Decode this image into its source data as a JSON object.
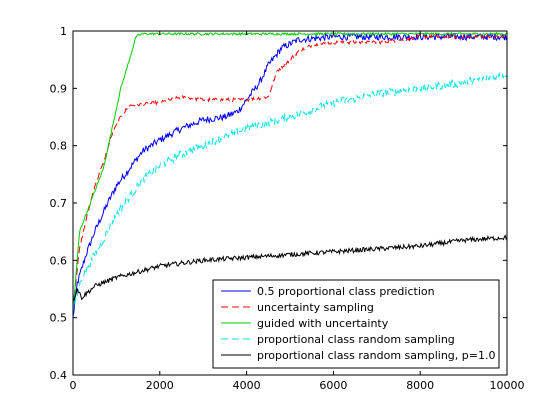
{
  "chart_data": {
    "type": "line",
    "title": "",
    "xlabel": "",
    "ylabel": "",
    "xlim": [
      0,
      10000
    ],
    "ylim": [
      0.4,
      1.0
    ],
    "x_ticks": [
      0,
      2000,
      4000,
      6000,
      8000,
      10000
    ],
    "x_tick_labels": [
      "0",
      "2000",
      "4000",
      "6000",
      "8000",
      "10000"
    ],
    "y_ticks": [
      0.4,
      0.5,
      0.6,
      0.7,
      0.8,
      0.9,
      1.0
    ],
    "y_tick_labels": [
      "0.4",
      "0.5",
      "0.6",
      "0.7",
      "0.8",
      "0.9",
      "1"
    ],
    "grid": false,
    "legend_position": "bottom-right",
    "series": [
      {
        "name": "0.5 proportional class prediction",
        "color": "#0000ff",
        "dash": "solid",
        "noise": 0.006,
        "points": [
          [
            0,
            0.5
          ],
          [
            100,
            0.56
          ],
          [
            300,
            0.61
          ],
          [
            500,
            0.65
          ],
          [
            800,
            0.7
          ],
          [
            1000,
            0.73
          ],
          [
            1300,
            0.76
          ],
          [
            1600,
            0.79
          ],
          [
            2000,
            0.81
          ],
          [
            2500,
            0.83
          ],
          [
            3000,
            0.845
          ],
          [
            3500,
            0.85
          ],
          [
            3800,
            0.86
          ],
          [
            4000,
            0.88
          ],
          [
            4300,
            0.91
          ],
          [
            4500,
            0.94
          ],
          [
            4800,
            0.97
          ],
          [
            5200,
            0.985
          ],
          [
            6000,
            0.99
          ],
          [
            8000,
            0.99
          ],
          [
            10000,
            0.99
          ]
        ]
      },
      {
        "name": "uncertainty sampling",
        "color": "#ff0000",
        "dash": "7,4",
        "noise": 0.003,
        "points": [
          [
            0,
            0.52
          ],
          [
            150,
            0.62
          ],
          [
            300,
            0.67
          ],
          [
            500,
            0.73
          ],
          [
            700,
            0.77
          ],
          [
            900,
            0.82
          ],
          [
            1100,
            0.85
          ],
          [
            1300,
            0.87
          ],
          [
            2000,
            0.875
          ],
          [
            2500,
            0.885
          ],
          [
            3000,
            0.88
          ],
          [
            4000,
            0.88
          ],
          [
            4500,
            0.885
          ],
          [
            4700,
            0.93
          ],
          [
            5000,
            0.95
          ],
          [
            5200,
            0.965
          ],
          [
            5500,
            0.975
          ],
          [
            6000,
            0.98
          ],
          [
            7000,
            0.98
          ],
          [
            7600,
            0.985
          ],
          [
            8000,
            0.99
          ],
          [
            10000,
            0.99
          ]
        ]
      },
      {
        "name": "guided with uncertainty",
        "color": "#00cc00",
        "dash": "solid",
        "noise": 0.002,
        "points": [
          [
            0,
            0.51
          ],
          [
            150,
            0.65
          ],
          [
            300,
            0.68
          ],
          [
            500,
            0.72
          ],
          [
            700,
            0.76
          ],
          [
            900,
            0.83
          ],
          [
            1100,
            0.9
          ],
          [
            1300,
            0.95
          ],
          [
            1450,
            0.99
          ],
          [
            1600,
            0.995
          ],
          [
            10000,
            0.995
          ]
        ]
      },
      {
        "name": "proportional class random sampling",
        "color": "#00e6e6",
        "dash": "7,4",
        "noise": 0.007,
        "points": [
          [
            0,
            0.51
          ],
          [
            200,
            0.57
          ],
          [
            500,
            0.61
          ],
          [
            800,
            0.65
          ],
          [
            1000,
            0.68
          ],
          [
            1300,
            0.71
          ],
          [
            1600,
            0.74
          ],
          [
            2000,
            0.765
          ],
          [
            2500,
            0.785
          ],
          [
            3000,
            0.8
          ],
          [
            3500,
            0.815
          ],
          [
            4000,
            0.83
          ],
          [
            5000,
            0.85
          ],
          [
            6000,
            0.875
          ],
          [
            7000,
            0.89
          ],
          [
            8000,
            0.9
          ],
          [
            9000,
            0.91
          ],
          [
            10000,
            0.925
          ]
        ]
      },
      {
        "name": "proportional class random sampling, p=1.0",
        "color": "#000000",
        "dash": "solid",
        "noise": 0.004,
        "points": [
          [
            0,
            0.53
          ],
          [
            100,
            0.55
          ],
          [
            200,
            0.535
          ],
          [
            500,
            0.555
          ],
          [
            1000,
            0.57
          ],
          [
            1500,
            0.58
          ],
          [
            2000,
            0.59
          ],
          [
            3000,
            0.6
          ],
          [
            4000,
            0.605
          ],
          [
            5000,
            0.61
          ],
          [
            6000,
            0.615
          ],
          [
            7000,
            0.62
          ],
          [
            8000,
            0.625
          ],
          [
            9000,
            0.635
          ],
          [
            10000,
            0.64
          ]
        ]
      }
    ]
  }
}
